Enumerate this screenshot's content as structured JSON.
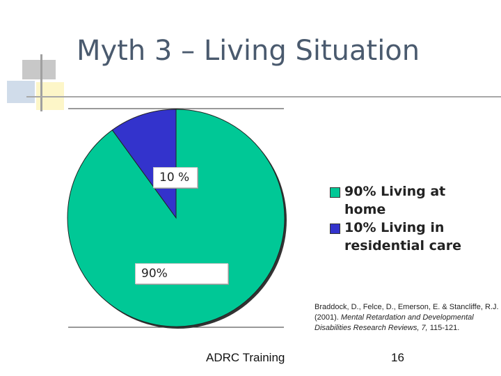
{
  "slide": {
    "title": "Myth 3 – Living Situation",
    "footer": "ADRC Training",
    "page_number": "16",
    "citation": {
      "authors": "Braddock, D., Felce, D., Emerson, E. & Stancliffe, R.J. (2001).",
      "journal": "Mental Retardation and Developmental Disabilities Research Reviews, 7,",
      "pages": "115-121."
    }
  },
  "chart_data": {
    "type": "pie",
    "slices": [
      {
        "label": "90% Living at home",
        "data_label": "90%",
        "value": 90,
        "color": "#00c896"
      },
      {
        "label": "10% Living in residential care",
        "data_label": "10 %",
        "value": 10,
        "color": "#3333cc"
      }
    ],
    "legend_position": "right"
  }
}
